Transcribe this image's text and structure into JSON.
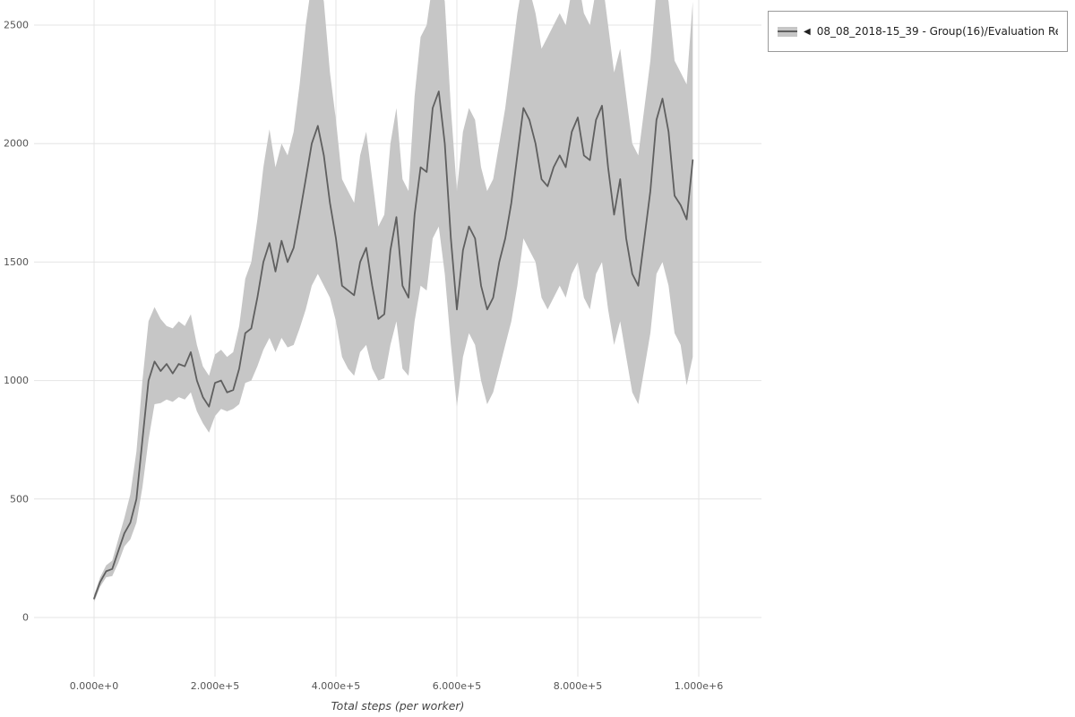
{
  "page": {
    "background": "#ffffff"
  },
  "legend": {
    "collapse_icon": "◀",
    "label": "08_08_2018-15_39 - Group(16)/Evaluation Reward",
    "band_color": "#c6c6c6",
    "line_color": "#5f5f5f"
  },
  "chart_data": {
    "type": "line",
    "title": "",
    "xlabel": "Total steps (per worker)",
    "ylabel": "",
    "series_name": "08_08_2018-15_39 - Group(16)/Evaluation Reward",
    "legend_position": "top-right",
    "grid": true,
    "grid_color": "#e4e4e4",
    "line_color": "#5f5f5f",
    "band_color": "#c6c6c6",
    "tick_color": "#555555",
    "xlim": [
      -99000,
      1104000
    ],
    "ylim": [
      -250,
      2606
    ],
    "x_ticks": [
      {
        "value": 0,
        "label": "0.000e+0"
      },
      {
        "value": 200000,
        "label": "2.000e+5"
      },
      {
        "value": 400000,
        "label": "4.000e+5"
      },
      {
        "value": 600000,
        "label": "6.000e+5"
      },
      {
        "value": 800000,
        "label": "8.000e+5"
      },
      {
        "value": 1000000,
        "label": "1.000e+6"
      }
    ],
    "y_ticks": [
      0,
      500,
      1000,
      1500,
      2000,
      2500
    ],
    "x": [
      0,
      10000,
      20000,
      30000,
      40000,
      50000,
      60000,
      70000,
      80000,
      90000,
      100000,
      110000,
      120000,
      130000,
      140000,
      150000,
      160000,
      170000,
      180000,
      190000,
      200000,
      210000,
      220000,
      230000,
      240000,
      250000,
      260000,
      270000,
      280000,
      290000,
      300000,
      310000,
      320000,
      330000,
      340000,
      350000,
      360000,
      370000,
      380000,
      390000,
      400000,
      410000,
      420000,
      430000,
      440000,
      450000,
      460000,
      470000,
      480000,
      490000,
      500000,
      510000,
      520000,
      530000,
      540000,
      550000,
      560000,
      570000,
      580000,
      590000,
      600000,
      610000,
      620000,
      630000,
      640000,
      650000,
      660000,
      670000,
      680000,
      690000,
      700000,
      710000,
      720000,
      730000,
      740000,
      750000,
      760000,
      770000,
      780000,
      790000,
      800000,
      810000,
      820000,
      830000,
      840000,
      850000,
      860000,
      870000,
      880000,
      890000,
      900000,
      910000,
      920000,
      930000,
      940000,
      950000,
      960000,
      970000,
      980000,
      990000
    ],
    "mean": [
      80,
      150,
      195,
      205,
      280,
      355,
      400,
      500,
      750,
      1000,
      1080,
      1040,
      1070,
      1030,
      1070,
      1060,
      1120,
      1000,
      930,
      890,
      990,
      1000,
      950,
      960,
      1050,
      1200,
      1220,
      1350,
      1500,
      1580,
      1460,
      1590,
      1500,
      1560,
      1700,
      1850,
      2000,
      2075,
      1950,
      1750,
      1600,
      1400,
      1380,
      1360,
      1500,
      1560,
      1400,
      1260,
      1280,
      1550,
      1690,
      1400,
      1350,
      1700,
      1900,
      1880,
      2150,
      2220,
      2000,
      1600,
      1300,
      1550,
      1650,
      1600,
      1400,
      1300,
      1350,
      1500,
      1600,
      1750,
      1950,
      2150,
      2100,
      2000,
      1850,
      1820,
      1900,
      1950,
      1900,
      2050,
      2110,
      1950,
      1930,
      2100,
      2160,
      1900,
      1700,
      1850,
      1600,
      1450,
      1400,
      1600,
      1800,
      2100,
      2190,
      2050,
      1780,
      1740,
      1680,
      1930
    ],
    "band_upper": [
      95,
      170,
      220,
      240,
      330,
      420,
      520,
      700,
      1000,
      1250,
      1310,
      1260,
      1230,
      1220,
      1250,
      1230,
      1280,
      1150,
      1060,
      1020,
      1110,
      1130,
      1100,
      1120,
      1230,
      1430,
      1500,
      1680,
      1900,
      2060,
      1900,
      2000,
      1950,
      2050,
      2250,
      2500,
      2680,
      2700,
      2600,
      2300,
      2100,
      1850,
      1800,
      1750,
      1950,
      2050,
      1850,
      1650,
      1700,
      2000,
      2150,
      1850,
      1800,
      2200,
      2450,
      2500,
      2680,
      2700,
      2600,
      2150,
      1800,
      2050,
      2150,
      2100,
      1900,
      1800,
      1850,
      2000,
      2150,
      2350,
      2550,
      2700,
      2650,
      2550,
      2400,
      2450,
      2500,
      2550,
      2500,
      2650,
      2700,
      2550,
      2500,
      2650,
      2700,
      2500,
      2300,
      2400,
      2200,
      2000,
      1950,
      2150,
      2350,
      2650,
      2700,
      2600,
      2350,
      2300,
      2250,
      2600
    ],
    "band_lower": [
      65,
      130,
      170,
      175,
      230,
      300,
      330,
      400,
      550,
      750,
      900,
      905,
      920,
      910,
      930,
      920,
      950,
      870,
      820,
      780,
      850,
      880,
      870,
      880,
      900,
      990,
      1000,
      1060,
      1130,
      1180,
      1120,
      1180,
      1140,
      1150,
      1220,
      1300,
      1400,
      1450,
      1400,
      1350,
      1250,
      1100,
      1050,
      1020,
      1120,
      1150,
      1050,
      1000,
      1010,
      1150,
      1250,
      1050,
      1020,
      1250,
      1400,
      1380,
      1600,
      1650,
      1450,
      1150,
      890,
      1100,
      1200,
      1150,
      1000,
      900,
      950,
      1050,
      1150,
      1250,
      1400,
      1600,
      1550,
      1500,
      1350,
      1300,
      1350,
      1400,
      1350,
      1450,
      1500,
      1350,
      1300,
      1450,
      1500,
      1300,
      1150,
      1250,
      1100,
      950,
      900,
      1050,
      1200,
      1450,
      1500,
      1400,
      1200,
      1150,
      980,
      1100
    ]
  }
}
